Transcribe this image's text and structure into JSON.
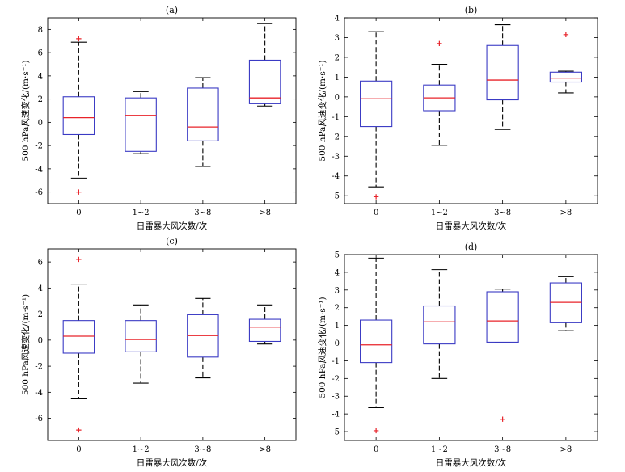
{
  "chart_data": [
    {
      "type": "boxplot",
      "title": "(a)",
      "xlabel": "日雷暴大风次数/次",
      "ylabel": "500 hPa风速变化/(m·s⁻¹)",
      "categories": [
        "0",
        "1~2",
        "3~8",
        ">8"
      ],
      "ylim": [
        -7,
        9
      ],
      "yticks": [
        -6,
        -4,
        -2,
        0,
        2,
        4,
        6,
        8
      ],
      "boxes": [
        {
          "whislo": -4.8,
          "q1": -1.05,
          "med": 0.4,
          "q3": 2.2,
          "whishi": 6.9,
          "fliers": [
            7.2,
            -6.0
          ]
        },
        {
          "whislo": -2.7,
          "q1": -2.5,
          "med": 0.6,
          "q3": 2.1,
          "whishi": 2.65,
          "fliers": []
        },
        {
          "whislo": -3.8,
          "q1": -1.6,
          "med": -0.4,
          "q3": 2.95,
          "whishi": 3.85,
          "fliers": []
        },
        {
          "whislo": 1.4,
          "q1": 1.6,
          "med": 2.1,
          "q3": 5.35,
          "whishi": 8.5,
          "fliers": []
        }
      ]
    },
    {
      "type": "boxplot",
      "title": "(b)",
      "xlabel": "日雷暴大风次数/次",
      "ylabel": "500 hPa风速变化/(m·s⁻¹)",
      "categories": [
        "0",
        "1~2",
        "3~8",
        ">8"
      ],
      "ylim": [
        -5.4,
        4
      ],
      "yticks": [
        -5,
        -4,
        -3,
        -2,
        -1,
        0,
        1,
        2,
        3,
        4
      ],
      "boxes": [
        {
          "whislo": -4.55,
          "q1": -1.5,
          "med": -0.1,
          "q3": 0.8,
          "whishi": 3.3,
          "fliers": [
            -5.05
          ]
        },
        {
          "whislo": -2.45,
          "q1": -0.7,
          "med": -0.05,
          "q3": 0.6,
          "whishi": 1.65,
          "fliers": [
            2.7
          ]
        },
        {
          "whislo": -1.65,
          "q1": -0.15,
          "med": 0.85,
          "q3": 2.6,
          "whishi": 3.65,
          "fliers": []
        },
        {
          "whislo": 0.2,
          "q1": 0.75,
          "med": 0.95,
          "q3": 1.25,
          "whishi": 1.3,
          "fliers": [
            3.15
          ]
        }
      ]
    },
    {
      "type": "boxplot",
      "title": "(c)",
      "xlabel": "日雷暴大风次数/次",
      "ylabel": "500 hPa风速变化/(m·s⁻¹)",
      "categories": [
        "0",
        "1~2",
        "3~8",
        ">8"
      ],
      "ylim": [
        -7.7,
        7
      ],
      "yticks": [
        -6,
        -4,
        -2,
        0,
        2,
        4,
        6
      ],
      "boxes": [
        {
          "whislo": -4.5,
          "q1": -1.0,
          "med": 0.3,
          "q3": 1.5,
          "whishi": 4.3,
          "fliers": [
            6.2,
            -6.9
          ]
        },
        {
          "whislo": -3.3,
          "q1": -0.9,
          "med": 0.05,
          "q3": 1.5,
          "whishi": 2.7,
          "fliers": []
        },
        {
          "whislo": -2.9,
          "q1": -1.3,
          "med": 0.35,
          "q3": 1.95,
          "whishi": 3.2,
          "fliers": []
        },
        {
          "whislo": -0.3,
          "q1": -0.1,
          "med": 1.0,
          "q3": 1.6,
          "whishi": 2.7,
          "fliers": []
        }
      ]
    },
    {
      "type": "boxplot",
      "title": "(d)",
      "xlabel": "日雷暴大风次数/次",
      "ylabel": "500 hPa风速变化/(m·s⁻¹)",
      "categories": [
        "0",
        "1~2",
        "3~8",
        ">8"
      ],
      "ylim": [
        -5.5,
        5
      ],
      "yticks": [
        -5,
        -4,
        -3,
        -2,
        -1,
        0,
        1,
        2,
        3,
        4,
        5
      ],
      "boxes": [
        {
          "whislo": -3.65,
          "q1": -1.1,
          "med": -0.1,
          "q3": 1.3,
          "whishi": 4.8,
          "fliers": [
            -4.95
          ]
        },
        {
          "whislo": -2.0,
          "q1": -0.05,
          "med": 1.2,
          "q3": 2.1,
          "whishi": 4.15,
          "fliers": []
        },
        {
          "whislo": 0.05,
          "q1": 0.05,
          "med": 1.25,
          "q3": 2.9,
          "whishi": 3.05,
          "fliers": [
            -4.3
          ]
        },
        {
          "whislo": 0.7,
          "q1": 1.15,
          "med": 2.3,
          "q3": 3.4,
          "whishi": 3.75,
          "fliers": []
        }
      ]
    }
  ],
  "colors": {
    "box": "#3a3ac4",
    "median": "#e8232a",
    "whisker": "#000000",
    "flier": "#e8232a",
    "frame": "#000000"
  }
}
